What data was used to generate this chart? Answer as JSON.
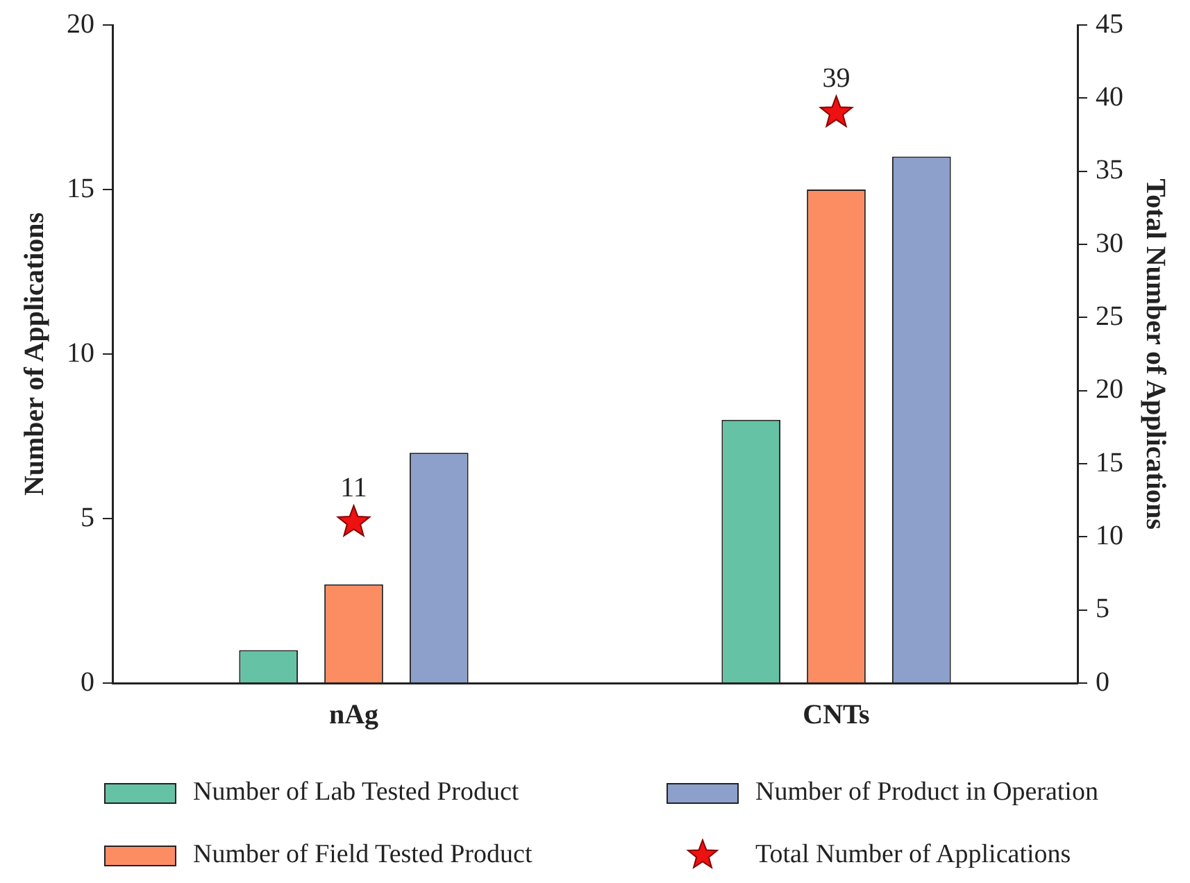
{
  "chart_data": {
    "type": "bar",
    "categories": [
      "nAg",
      "CNTs"
    ],
    "ylabel": "Number of Applications",
    "y2label": "Total Number of Applications",
    "ylim": [
      0,
      20
    ],
    "yticks": [
      0,
      5,
      10,
      15,
      20
    ],
    "y2lim": [
      0,
      45
    ],
    "y2ticks": [
      0,
      5,
      10,
      15,
      20,
      25,
      30,
      35,
      40,
      45
    ],
    "legend": "bottom",
    "series": [
      {
        "name": "Number of Lab Tested Product",
        "color": "#66c2a5",
        "values": [
          1,
          8
        ]
      },
      {
        "name": "Number of Field Tested Product",
        "color": "#fc8d62",
        "values": [
          3,
          15
        ]
      },
      {
        "name": "Number of Product in Operation",
        "color": "#8da0cb",
        "values": [
          7,
          16
        ]
      },
      {
        "name": "Total Number of Applications",
        "type": "scatter",
        "axis": "y2",
        "marker": "star",
        "color": "#ee1111",
        "values": [
          11,
          39
        ],
        "value_labels": [
          "11",
          "39"
        ]
      }
    ]
  }
}
